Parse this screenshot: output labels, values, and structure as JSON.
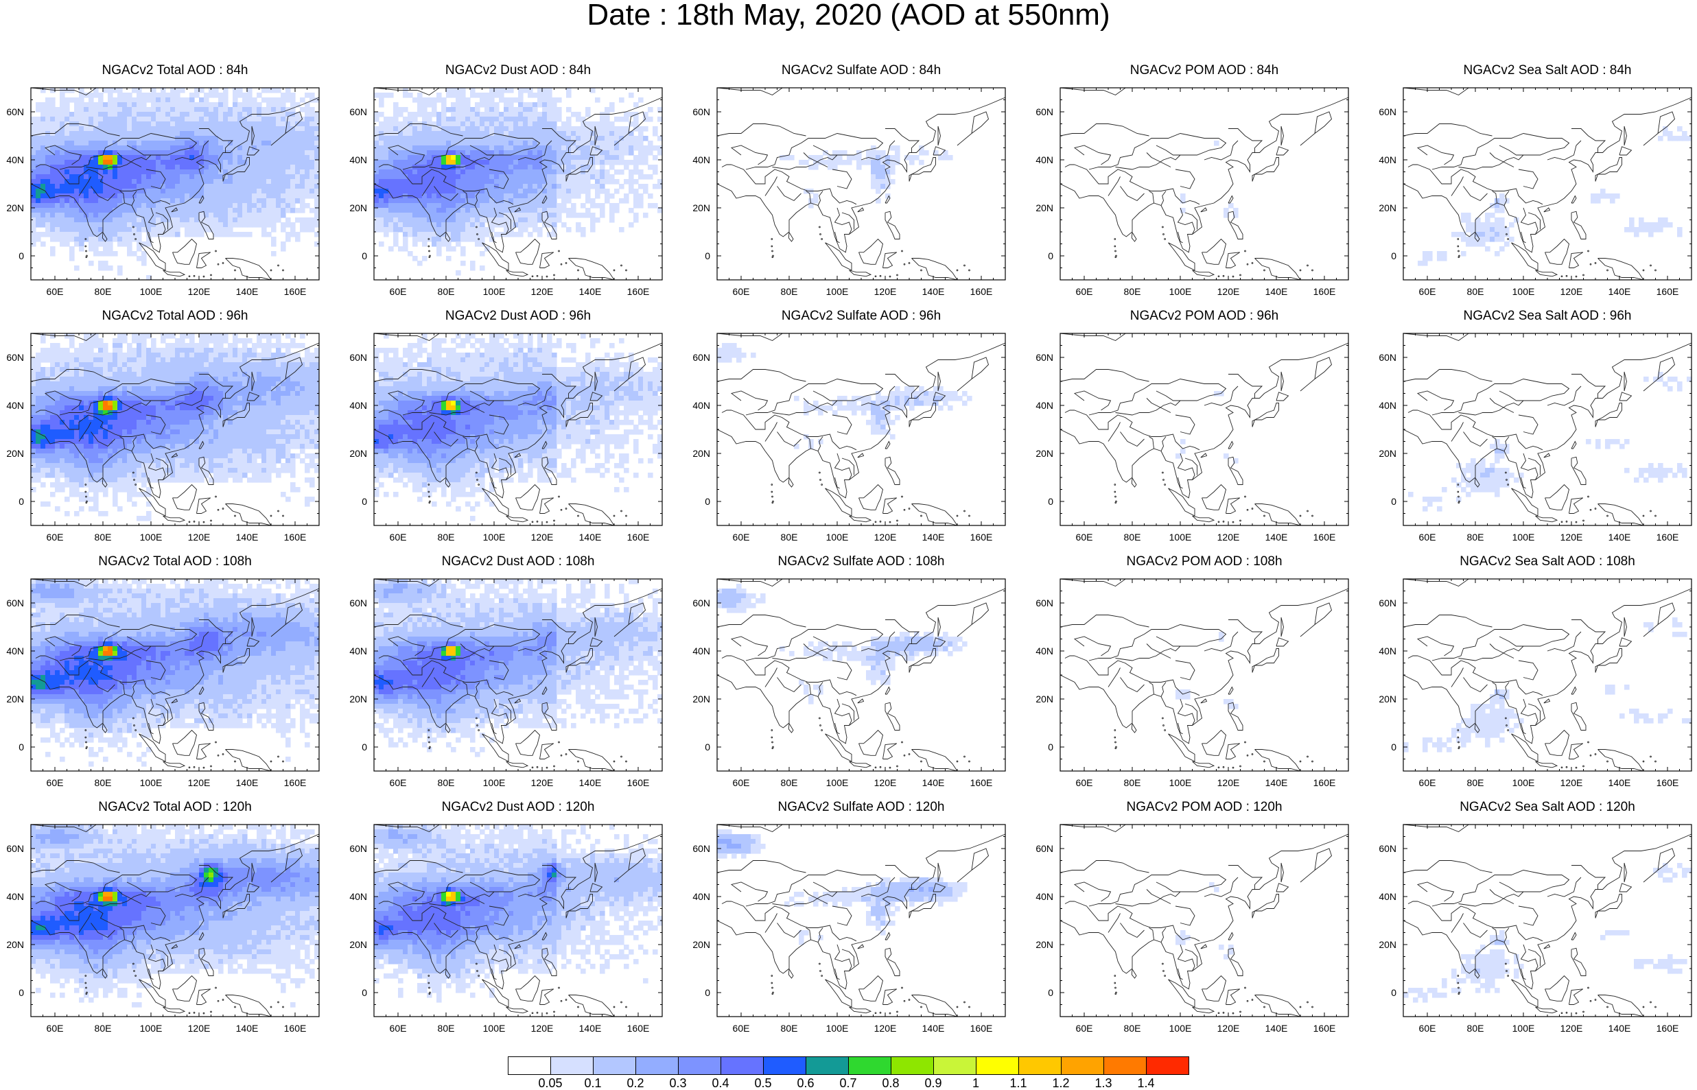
{
  "title": "Date : 18th May, 2020 (AOD at 550nm)",
  "lon_ticks": [
    "60E",
    "80E",
    "100E",
    "120E",
    "140E",
    "160E"
  ],
  "lat_ticks": [
    "60N",
    "40N",
    "20N",
    "0"
  ],
  "colorbar": {
    "colors": [
      "#ffffff",
      "#d6e0ff",
      "#b3c7ff",
      "#93adff",
      "#7d93ff",
      "#6673ff",
      "#1f5cff",
      "#139a96",
      "#2fd82f",
      "#8ee600",
      "#c9f538",
      "#ffff00",
      "#ffc800",
      "#ffa300",
      "#ff7a00",
      "#ff2a00"
    ],
    "labels": [
      "0.05",
      "0.1",
      "0.2",
      "0.3",
      "0.4",
      "0.5",
      "0.6",
      "0.7",
      "0.8",
      "0.9",
      "1",
      "1.1",
      "1.2",
      "1.3",
      "1.4"
    ]
  },
  "panels": [
    {
      "title": "NGACv2 Total AOD : 84h",
      "kind": "total"
    },
    {
      "title": "NGACv2 Dust AOD : 84h",
      "kind": "dust"
    },
    {
      "title": "NGACv2 Sulfate AOD : 84h",
      "kind": "sulfate"
    },
    {
      "title": "NGACv2 POM AOD : 84h",
      "kind": "pom"
    },
    {
      "title": "NGACv2 Sea Salt AOD : 84h",
      "kind": "seasalt"
    },
    {
      "title": "NGACv2 Total AOD : 96h",
      "kind": "total"
    },
    {
      "title": "NGACv2 Dust AOD : 96h",
      "kind": "dust"
    },
    {
      "title": "NGACv2 Sulfate AOD : 96h",
      "kind": "sulfate"
    },
    {
      "title": "NGACv2 POM AOD : 96h",
      "kind": "pom"
    },
    {
      "title": "NGACv2 Sea Salt AOD : 96h",
      "kind": "seasalt"
    },
    {
      "title": "NGACv2 Total AOD : 108h",
      "kind": "total"
    },
    {
      "title": "NGACv2 Dust AOD : 108h",
      "kind": "dust"
    },
    {
      "title": "NGACv2 Sulfate AOD : 108h",
      "kind": "sulfate"
    },
    {
      "title": "NGACv2 POM AOD : 108h",
      "kind": "pom"
    },
    {
      "title": "NGACv2 Sea Salt AOD : 108h",
      "kind": "seasalt"
    },
    {
      "title": "NGACv2 Total AOD : 120h",
      "kind": "total"
    },
    {
      "title": "NGACv2 Dust AOD : 120h",
      "kind": "dust"
    },
    {
      "title": "NGACv2 Sulfate AOD : 120h",
      "kind": "sulfate"
    },
    {
      "title": "NGACv2 POM AOD : 120h",
      "kind": "pom"
    },
    {
      "title": "NGACv2 Sea Salt  AOD : 120h",
      "kind": "seasalt"
    }
  ]
}
